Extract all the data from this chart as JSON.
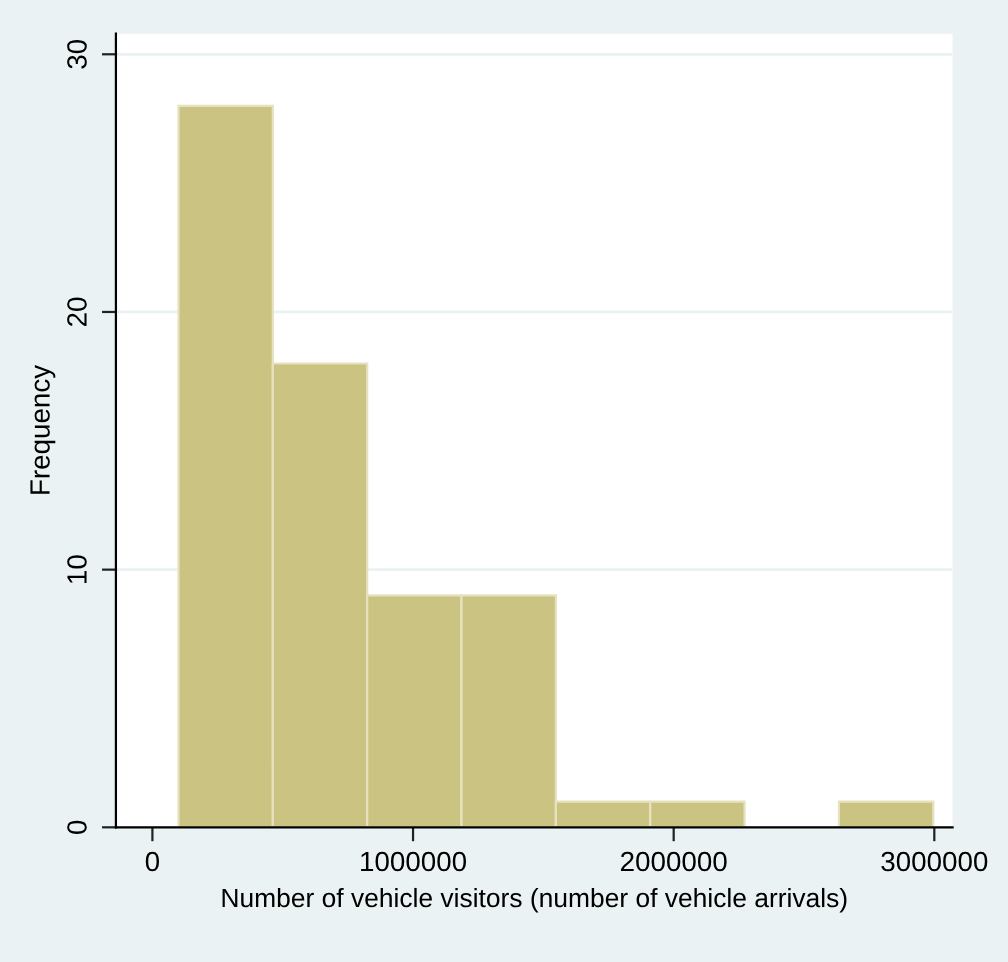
{
  "chart_data": {
    "type": "histogram",
    "xlabel": "Number of vehicle visitors (number of vehicle arrivals)",
    "ylabel": "Frequency",
    "bins": [
      100000,
      462000,
      824000,
      1186000,
      1548000,
      1910000,
      2272000,
      2634000,
      2996000
    ],
    "values": [
      28,
      18,
      9,
      9,
      1,
      1,
      0,
      1
    ],
    "color": "#cbc381",
    "xlim": [
      -140000,
      3070000
    ],
    "xticks": [
      0,
      1000000,
      2000000,
      3000000
    ],
    "ylim": [
      0,
      30.8
    ],
    "yticks": [
      0,
      10,
      20,
      30
    ],
    "grid": "y"
  }
}
